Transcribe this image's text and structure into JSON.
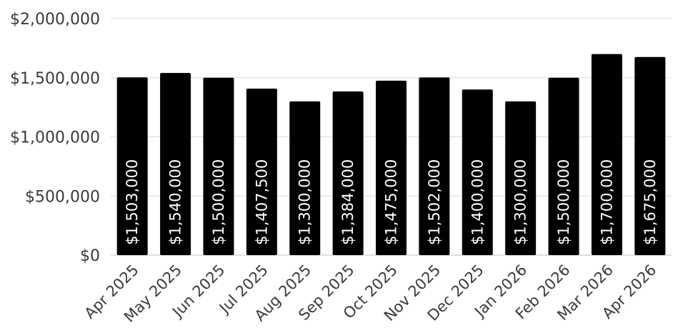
{
  "chart_data": {
    "type": "bar",
    "title": "",
    "xlabel": "",
    "ylabel": "",
    "categories": [
      "Apr 2025",
      "May 2025",
      "Jun 2025",
      "Jul 2025",
      "Aug 2025",
      "Sep 2025",
      "Oct 2025",
      "Nov 2025",
      "Dec 2025",
      "Jan 2026",
      "Feb 2026",
      "Mar 2026",
      "Apr 2026"
    ],
    "values": [
      1503000,
      1540000,
      1500000,
      1407500,
      1300000,
      1384000,
      1475000,
      1502000,
      1400000,
      1300000,
      1500000,
      1700000,
      1675000
    ],
    "data_labels": [
      "$1,503,000",
      "$1,540,000",
      "$1,500,000",
      "$1,407,500",
      "$1,300,000",
      "$1,384,000",
      "$1,475,000",
      "$1,502,000",
      "$1,400,000",
      "$1,300,000",
      "$1,500,000",
      "$1,700,000",
      "$1,675,000"
    ],
    "ylim": [
      0,
      2000000
    ],
    "yticks": [
      0,
      500000,
      1000000,
      1500000,
      2000000
    ],
    "ytick_labels": [
      "$0",
      "$500,000",
      "$1,000,000",
      "$1,500,000",
      "$2,000,000"
    ],
    "grid": true,
    "bar_color": "#000000",
    "label_color": "#ffffff"
  }
}
